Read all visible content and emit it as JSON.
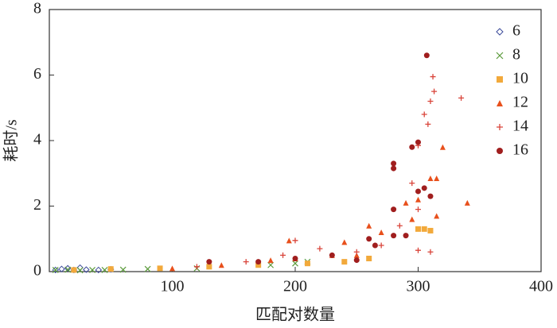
{
  "chart_data": {
    "type": "scatter",
    "xlabel": "匹配对数量",
    "ylabel": "耗时/s",
    "xlim": [
      0,
      400
    ],
    "xticks": [
      100,
      200,
      300,
      400
    ],
    "ylim": [
      0,
      8
    ],
    "yticks": [
      0,
      2,
      4,
      6,
      8
    ],
    "legend": "upper right",
    "series": [
      {
        "name": "6",
        "color": "#3b4a9a",
        "marker": "diamond",
        "x": [
          5,
          10,
          15,
          20,
          25,
          30,
          40,
          50
        ],
        "values": [
          0.05,
          0.08,
          0.1,
          0.05,
          0.12,
          0.06,
          0.05,
          0.07
        ]
      },
      {
        "name": "8",
        "color": "#5a9a3a",
        "marker": "cross",
        "x": [
          5,
          15,
          25,
          35,
          45,
          60,
          80,
          120,
          180,
          200,
          210
        ],
        "values": [
          0.05,
          0.06,
          0.04,
          0.05,
          0.05,
          0.06,
          0.08,
          0.1,
          0.2,
          0.25,
          0.3
        ]
      },
      {
        "name": "10",
        "color": "#f2a93b",
        "marker": "square",
        "x": [
          20,
          50,
          90,
          130,
          170,
          210,
          240,
          260,
          300,
          305,
          310
        ],
        "values": [
          0.05,
          0.08,
          0.1,
          0.15,
          0.2,
          0.25,
          0.3,
          0.4,
          1.3,
          1.3,
          1.25
        ]
      },
      {
        "name": "12",
        "color": "#e8501c",
        "marker": "triangle",
        "x": [
          100,
          140,
          180,
          195,
          200,
          230,
          240,
          250,
          260,
          270,
          290,
          295,
          300,
          310,
          315,
          315,
          320,
          340
        ],
        "values": [
          0.1,
          0.2,
          0.35,
          0.95,
          0.4,
          0.5,
          0.9,
          0.5,
          1.4,
          1.2,
          2.1,
          1.6,
          2.2,
          2.85,
          2.85,
          1.7,
          3.8,
          2.1
        ]
      },
      {
        "name": "14",
        "color": "#d9443a",
        "marker": "plus",
        "x": [
          120,
          160,
          190,
          200,
          220,
          250,
          270,
          285,
          295,
          300,
          300,
          300,
          305,
          308,
          310,
          310,
          312,
          313,
          335
        ],
        "values": [
          0.15,
          0.3,
          0.5,
          0.95,
          0.7,
          0.6,
          0.8,
          1.4,
          2.7,
          1.9,
          3.85,
          0.65,
          4.8,
          4.5,
          5.2,
          0.6,
          5.95,
          5.5,
          5.3
        ]
      },
      {
        "name": "16",
        "color": "#a01e1e",
        "marker": "circle",
        "x": [
          130,
          170,
          200,
          230,
          250,
          260,
          265,
          280,
          280,
          280,
          280,
          290,
          295,
          300,
          300,
          305,
          307,
          310
        ],
        "values": [
          0.3,
          0.3,
          0.4,
          0.5,
          0.35,
          1.0,
          0.8,
          3.3,
          3.15,
          1.9,
          1.1,
          1.1,
          3.8,
          3.95,
          2.45,
          2.55,
          6.6,
          2.3
        ]
      }
    ]
  }
}
